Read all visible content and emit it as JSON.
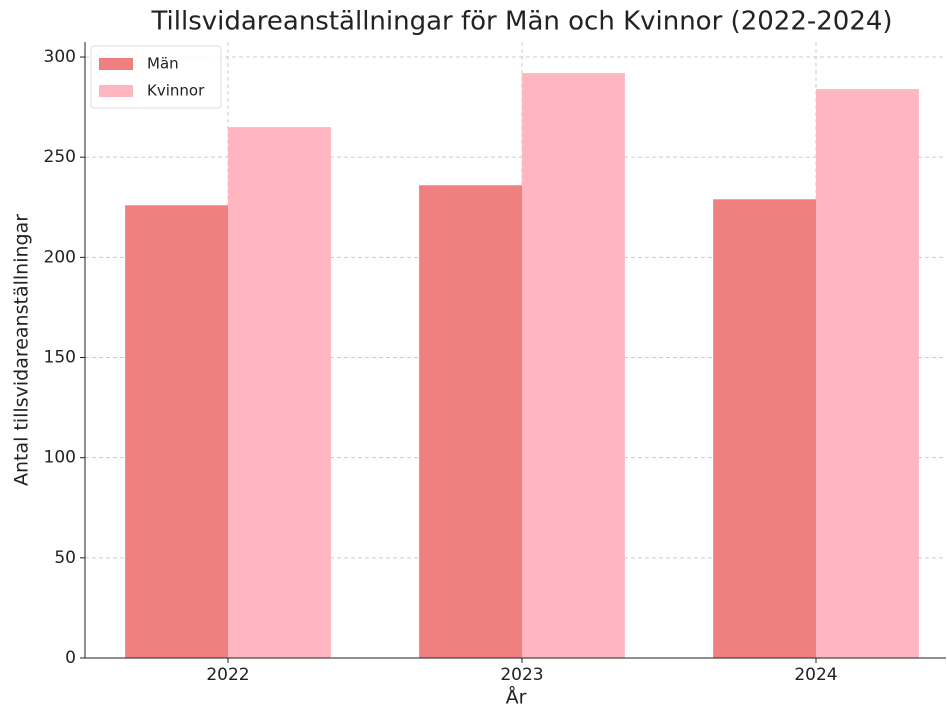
{
  "chart_data": {
    "type": "bar",
    "title": "Tillsvidareanställningar för Män och Kvinnor (2022-2024)",
    "x_label": "År",
    "y_label": "Antal tillsvidareanställningar",
    "categories": [
      "2022",
      "2023",
      "2024"
    ],
    "series": [
      {
        "name": "Män",
        "color": "#f08080",
        "values": [
          226,
          236,
          229
        ]
      },
      {
        "name": "Kvinnor",
        "color": "#ffb6c1",
        "values": [
          265,
          292,
          284
        ]
      }
    ],
    "ylim": [
      0,
      307.5
    ],
    "yticks": [
      0,
      50,
      100,
      150,
      200,
      250,
      300
    ],
    "grid": true,
    "legend": "upper left"
  }
}
